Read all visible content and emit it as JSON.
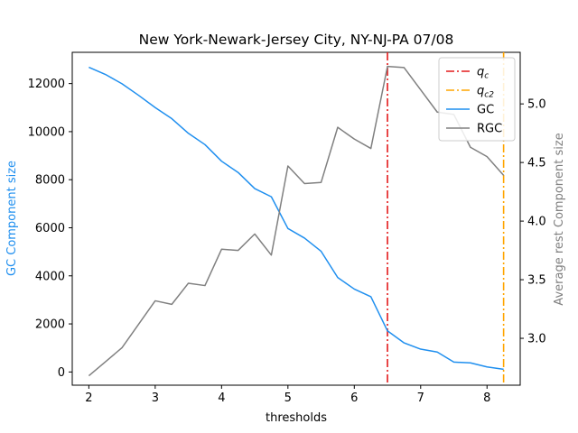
{
  "chart_data": {
    "type": "line",
    "title": "New York-Newark-Jersey City, NY-NJ-PA 07/08",
    "xlabel": "thresholds",
    "ylabel_left": "GC Component size",
    "ylabel_right": "Average rest Component size",
    "xlim": [
      1.75,
      8.5
    ],
    "ylim_left": [
      -550,
      13300
    ],
    "ylim_right": [
      2.6,
      5.44
    ],
    "x_ticks": [
      2,
      3,
      4,
      5,
      6,
      7,
      8
    ],
    "x_tick_labels": [
      "2",
      "3",
      "4",
      "5",
      "6",
      "7",
      "8"
    ],
    "y_left_ticks": [
      0,
      2000,
      4000,
      6000,
      8000,
      10000,
      12000
    ],
    "y_left_tick_labels": [
      "0",
      "2000",
      "4000",
      "6000",
      "8000",
      "10000",
      "12000"
    ],
    "y_right_ticks": [
      3.0,
      3.5,
      4.0,
      4.5,
      5.0
    ],
    "y_right_tick_labels": [
      "3.0",
      "3.5",
      "4.0",
      "4.5",
      "5.0"
    ],
    "x": [
      2.0,
      2.25,
      2.5,
      2.75,
      3.0,
      3.25,
      3.5,
      3.75,
      4.0,
      4.25,
      4.5,
      4.75,
      5.0,
      5.25,
      5.5,
      5.75,
      6.0,
      6.25,
      6.5,
      6.75,
      7.0,
      7.25,
      7.5,
      7.75,
      8.0,
      8.25
    ],
    "series": [
      {
        "name": "GC",
        "axis": "left",
        "color": "#1f8fef",
        "values": [
          12680,
          12380,
          11990,
          11510,
          11000,
          10540,
          9930,
          9460,
          8770,
          8300,
          7630,
          7290,
          5970,
          5570,
          5020,
          3930,
          3450,
          3130,
          1710,
          1210,
          950,
          830,
          410,
          380,
          210,
          110
        ]
      },
      {
        "name": "RGC",
        "axis": "right",
        "color": "#808080",
        "values": [
          2.68,
          2.8,
          2.92,
          3.12,
          3.32,
          3.29,
          3.47,
          3.45,
          3.76,
          3.75,
          3.89,
          3.71,
          4.47,
          4.32,
          4.33,
          4.8,
          4.7,
          4.62,
          5.32,
          5.31,
          5.12,
          4.93,
          4.91,
          4.63,
          4.55,
          4.39
        ]
      }
    ],
    "vlines": [
      {
        "name": "q_c",
        "label_base": "q",
        "label_sub": "c",
        "x": 6.5,
        "color": "#e31a1c",
        "dash": "dashdot"
      },
      {
        "name": "q_c2",
        "label_base": "q",
        "label_sub": "c2",
        "x": 8.25,
        "color": "#ffa500",
        "dash": "dashdot"
      }
    ],
    "legend": {
      "position": "top-right",
      "entries": [
        {
          "label_base": "q",
          "label_sub": "c",
          "color": "#e31a1c",
          "style": "dashdot"
        },
        {
          "label_base": "q",
          "label_sub": "c2",
          "color": "#ffa500",
          "style": "dashdot"
        },
        {
          "label_base": "GC",
          "label_sub": "",
          "color": "#1f8fef",
          "style": "solid"
        },
        {
          "label_base": "RGC",
          "label_sub": "",
          "color": "#808080",
          "style": "solid"
        }
      ]
    },
    "grid": false,
    "colors": {
      "left_axis_label": "#1f8fef",
      "right_axis_label": "#808080"
    }
  }
}
